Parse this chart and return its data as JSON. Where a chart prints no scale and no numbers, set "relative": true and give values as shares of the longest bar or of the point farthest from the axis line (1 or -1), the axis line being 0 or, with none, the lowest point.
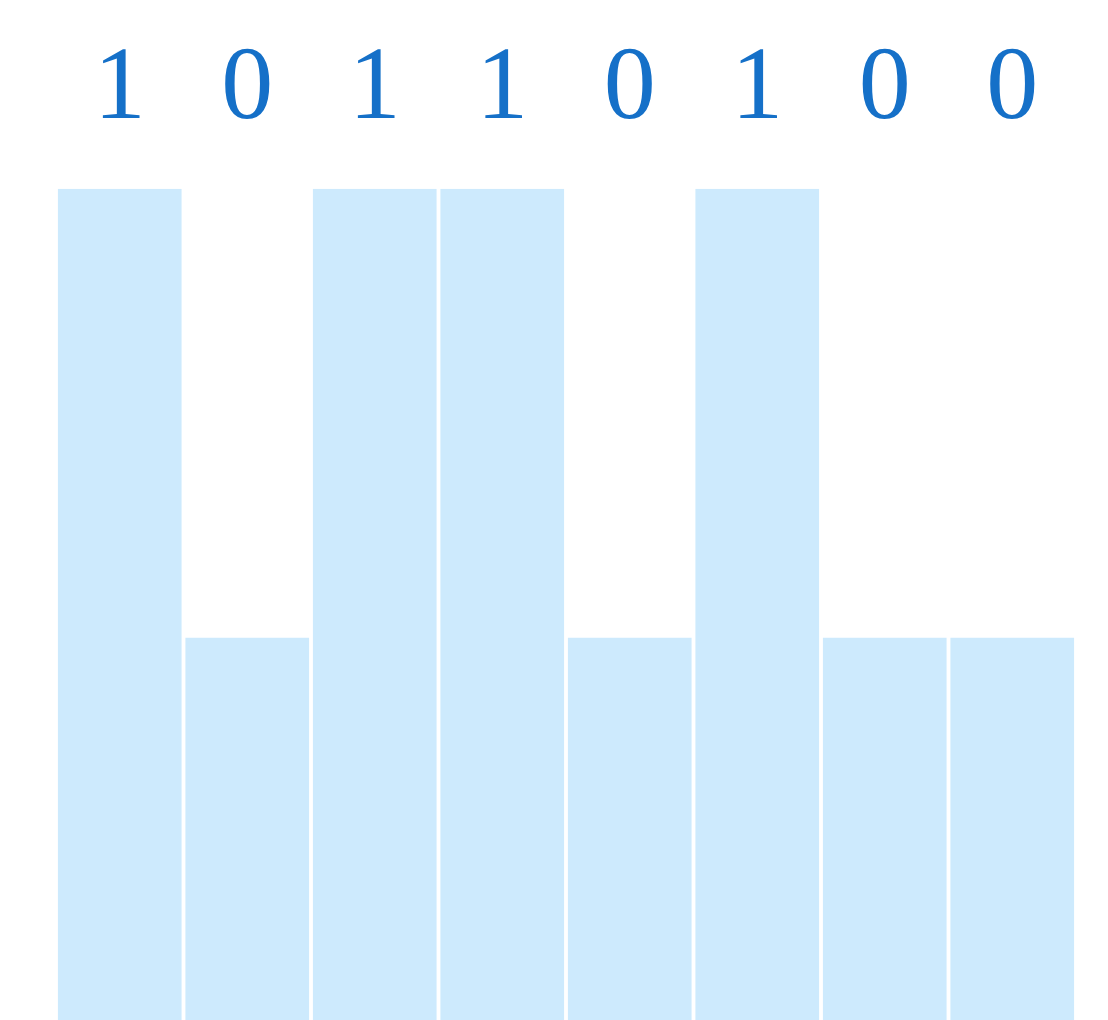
{
  "chart_data": {
    "type": "bar",
    "categories": [
      "1",
      "0",
      "1",
      "1",
      "0",
      "1",
      "0",
      "0"
    ],
    "values": [
      1,
      0.46,
      1,
      1,
      0.46,
      1,
      0.46,
      0.46
    ],
    "color": "#cdeafd",
    "relative": true
  }
}
